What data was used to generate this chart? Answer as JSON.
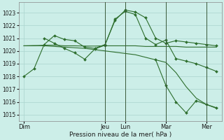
{
  "background_color": "#cceee8",
  "grid_color": "#aad4ce",
  "line_color": "#2d6e2d",
  "marker_color": "#2d6e2d",
  "xlabel": "Pression niveau de la mer( hPa )",
  "ylim": [
    1014.5,
    1023.8
  ],
  "yticks": [
    1015,
    1016,
    1017,
    1018,
    1019,
    1020,
    1021,
    1022,
    1023
  ],
  "day_labels": [
    "Dim",
    "Jeu",
    "Lun",
    "Mar",
    "Mer"
  ],
  "day_positions": [
    0,
    8,
    10,
    14,
    18
  ],
  "xlim": [
    -0.5,
    19.5
  ],
  "vlines": [
    8,
    10,
    14,
    18
  ],
  "series": [
    {
      "x": [
        0,
        1,
        2,
        3,
        4,
        5,
        6,
        7,
        8,
        9,
        10,
        11,
        12,
        13,
        14,
        15,
        16,
        17,
        18,
        19
      ],
      "y": [
        1018.0,
        1018.6,
        1020.5,
        1021.2,
        1020.9,
        1020.8,
        1020.3,
        1020.2,
        1020.5,
        1022.4,
        1023.2,
        1023.05,
        1022.6,
        1021.0,
        1020.6,
        1020.8,
        1020.7,
        1020.6,
        1020.5,
        1020.4
      ],
      "markers": true
    },
    {
      "x": [
        0,
        1,
        2,
        3,
        4,
        5,
        6,
        7,
        8,
        9,
        10,
        11,
        12,
        13,
        14,
        15,
        16,
        17,
        18,
        19
      ],
      "y": [
        1020.4,
        1020.4,
        1020.45,
        1020.45,
        1020.4,
        1020.4,
        1020.38,
        1020.38,
        1020.4,
        1020.4,
        1020.4,
        1020.4,
        1020.35,
        1020.35,
        1020.35,
        1020.35,
        1020.3,
        1020.3,
        1020.3,
        1020.3
      ],
      "markers": false
    },
    {
      "x": [
        0,
        1,
        2,
        3,
        4,
        5,
        6,
        7,
        8,
        9,
        10,
        11,
        12,
        13,
        14,
        15,
        16,
        17,
        18,
        19
      ],
      "y": [
        1020.4,
        1020.42,
        1020.4,
        1020.35,
        1020.3,
        1020.25,
        1020.2,
        1020.1,
        1020.0,
        1019.9,
        1019.8,
        1019.7,
        1019.5,
        1019.3,
        1019.1,
        1018.3,
        1017.2,
        1016.3,
        1015.8,
        1015.5
      ],
      "markers": false
    },
    {
      "x": [
        2,
        3,
        4,
        5,
        6,
        7,
        8,
        9,
        10,
        11,
        12,
        13,
        14,
        15,
        16,
        17,
        18,
        19
      ],
      "y": [
        1021.0,
        1020.6,
        1020.2,
        1019.85,
        1019.35,
        1020.15,
        1020.45,
        1022.5,
        1023.1,
        1022.85,
        1021.0,
        1020.5,
        1020.85,
        1019.4,
        1019.2,
        1019.0,
        1018.7,
        1018.4
      ],
      "markers": true
    },
    {
      "x": [
        13,
        14,
        15,
        16,
        17,
        18,
        19
      ],
      "y": [
        1019.3,
        1017.3,
        1016.0,
        1015.15,
        1016.1,
        1015.8,
        1015.55
      ],
      "markers": true
    }
  ],
  "figsize": [
    3.2,
    2.0
  ],
  "dpi": 100
}
